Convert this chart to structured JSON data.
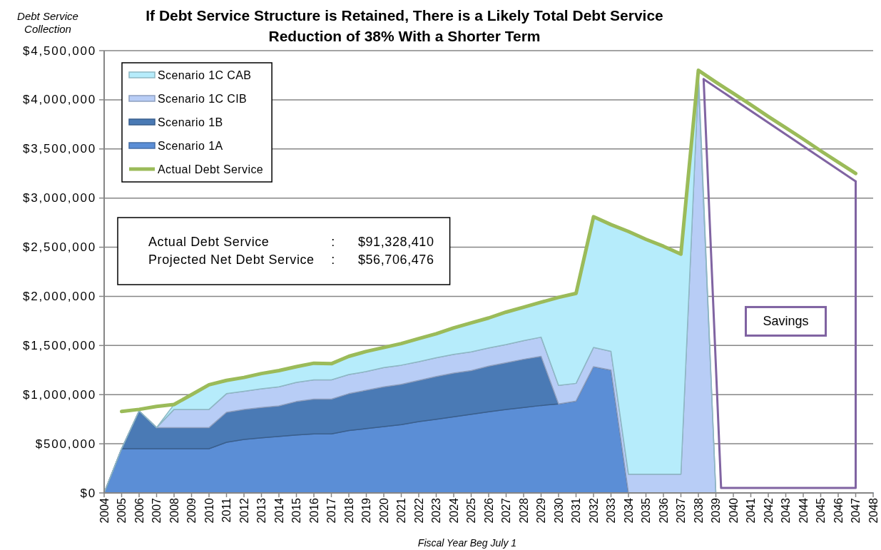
{
  "chart_data": {
    "type": "area",
    "title": "If Debt Service Structure is Retained, There is a Likely Total Debt Service Reduction of 38% With a Shorter Term",
    "xlabel": "Fiscal Year Beg July 1",
    "ylabel": "Debt Service Collection",
    "x": [
      2004,
      2005,
      2006,
      2007,
      2008,
      2009,
      2010,
      2011,
      2012,
      2013,
      2014,
      2015,
      2016,
      2017,
      2018,
      2019,
      2020,
      2021,
      2022,
      2023,
      2024,
      2025,
      2026,
      2027,
      2028,
      2029,
      2030,
      2031,
      2032,
      2033,
      2034,
      2035,
      2036,
      2037,
      2038,
      2039,
      2040,
      2041,
      2042,
      2043,
      2044,
      2045,
      2046,
      2047,
      2048
    ],
    "xlim": [
      2004,
      2048
    ],
    "xticks": [
      2004,
      2005,
      2006,
      2007,
      2008,
      2009,
      2010,
      2011,
      2012,
      2013,
      2014,
      2015,
      2016,
      2017,
      2018,
      2019,
      2020,
      2021,
      2022,
      2023,
      2024,
      2025,
      2026,
      2027,
      2028,
      2029,
      2030,
      2031,
      2032,
      2033,
      2034,
      2035,
      2036,
      2037,
      2038,
      2039,
      2040,
      2041,
      2042,
      2043,
      2044,
      2045,
      2046,
      2047,
      2048
    ],
    "ylim": [
      0,
      4500000
    ],
    "yticks": [
      {
        "value": 0,
        "label": "$0"
      },
      {
        "value": 500000,
        "label": "$500,000"
      },
      {
        "value": 1000000,
        "label": "$1,000,000"
      },
      {
        "value": 1500000,
        "label": "$1,500,000"
      },
      {
        "value": 2000000,
        "label": "$2,000,000"
      },
      {
        "value": 2500000,
        "label": "$2,500,000"
      },
      {
        "value": 3000000,
        "label": "$3,000,000"
      },
      {
        "value": 3500000,
        "label": "$3,500,000"
      },
      {
        "value": 4000000,
        "label": "$4,000,000"
      },
      {
        "value": 4500000,
        "label": "$4,500,000"
      }
    ],
    "grid": "y",
    "legend": "top left",
    "stacked": true,
    "series": [
      {
        "name": "Scenario 1A",
        "color": "#5b8ed6",
        "values": [
          0,
          450000,
          450000,
          450000,
          450000,
          450000,
          450000,
          515000,
          545000,
          560000,
          575000,
          590000,
          600000,
          600000,
          635000,
          655000,
          675000,
          695000,
          725000,
          750000,
          775000,
          800000,
          825000,
          850000,
          870000,
          890000,
          905000,
          935000,
          1285000,
          1250000,
          0,
          0,
          0,
          0,
          0,
          0,
          0,
          0,
          0,
          0,
          0,
          0,
          0,
          0,
          0
        ]
      },
      {
        "name": "Scenario 1B",
        "color": "#4a7ab5",
        "values": [
          0,
          0,
          385000,
          215000,
          215000,
          215000,
          215000,
          305000,
          305000,
          310000,
          310000,
          340000,
          355000,
          355000,
          375000,
          390000,
          405000,
          410000,
          420000,
          435000,
          445000,
          445000,
          465000,
          475000,
          490000,
          500000,
          0,
          0,
          0,
          0,
          0,
          0,
          0,
          0,
          0,
          0,
          0,
          0,
          0,
          0,
          0,
          0,
          0,
          0,
          0
        ]
      },
      {
        "name": "Scenario 1C CIB",
        "color": "#b8cdf6",
        "values": [
          0,
          0,
          0,
          0,
          185000,
          185000,
          185000,
          190000,
          185000,
          190000,
          195000,
          195000,
          195000,
          195000,
          195000,
          190000,
          195000,
          195000,
          190000,
          190000,
          190000,
          190000,
          185000,
          185000,
          190000,
          195000,
          190000,
          180000,
          195000,
          190000,
          190000,
          190000,
          190000,
          190000,
          4200000,
          0,
          0,
          0,
          0,
          0,
          0,
          0,
          0,
          0,
          0
        ]
      },
      {
        "name": "Scenario 1C CAB",
        "color": "#b6ecfb",
        "values": [
          0,
          0,
          0,
          0,
          50000,
          150000,
          250000,
          135000,
          140000,
          155000,
          165000,
          160000,
          170000,
          165000,
          185000,
          205000,
          205000,
          220000,
          235000,
          245000,
          270000,
          295000,
          305000,
          330000,
          340000,
          355000,
          895000,
          915000,
          1330000,
          1290000,
          2470000,
          2390000,
          2320000,
          2240000,
          100000,
          0,
          0,
          0,
          0,
          0,
          0,
          0,
          0,
          0,
          0
        ]
      },
      {
        "name": "Actual Debt Service",
        "type": "line",
        "color": "#9bbb59",
        "values": [
          null,
          830000,
          850000,
          880000,
          900000,
          1000000,
          1100000,
          1145000,
          1175000,
          1215000,
          1245000,
          1285000,
          1320000,
          1315000,
          1390000,
          1440000,
          1480000,
          1520000,
          1570000,
          1620000,
          1680000,
          1730000,
          1780000,
          1840000,
          1890000,
          1940000,
          1990000,
          2030000,
          2810000,
          2730000,
          2660000,
          2580000,
          2510000,
          2430000,
          4300000,
          4180000,
          4065000,
          3950000,
          3830000,
          3715000,
          3600000,
          3480000,
          3365000,
          3250000,
          null
        ]
      },
      {
        "type": "line",
        "color": "#8064a2",
        "x": [
          2038.3,
          2039.3,
          2047,
          2047
        ],
        "values": [
          4210000,
          50000,
          50000,
          3170000
        ]
      },
      {
        "type": "line",
        "color": "#8064a2",
        "x": [
          2038.3,
          2047
        ],
        "values": [
          4210000,
          3170000
        ]
      }
    ],
    "annotations": [
      "Actual Debt Service : $91,328,410",
      "Projected Net Debt Service : $56,706,476",
      "Savings"
    ]
  }
}
